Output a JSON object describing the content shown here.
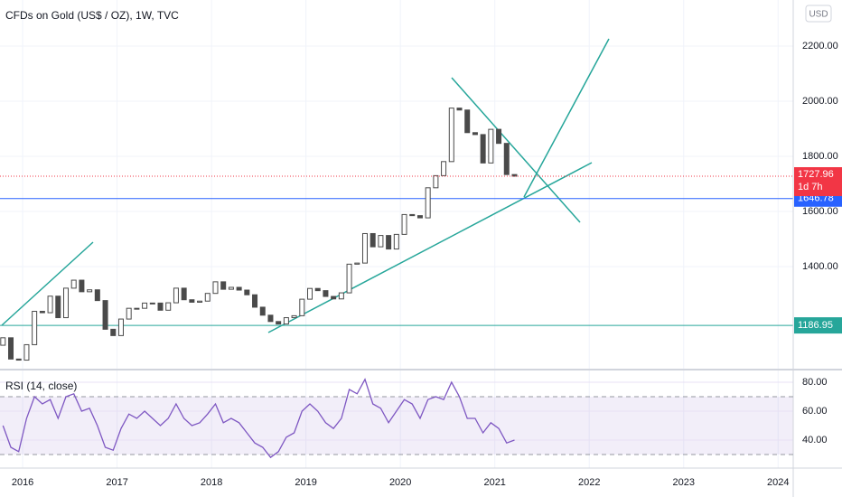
{
  "chart_data": [
    {
      "type": "candlestick",
      "title": "CFDs on Gold (US$ / OZ), 1W, TVC",
      "currency": "USD",
      "x": [
        "2015-10",
        "2015-11",
        "2015-12",
        "2016-01",
        "2016-02",
        "2016-03",
        "2016-04",
        "2016-05",
        "2016-06",
        "2016-07",
        "2016-08",
        "2016-09",
        "2016-10",
        "2016-11",
        "2016-12",
        "2017-01",
        "2017-02",
        "2017-03",
        "2017-04",
        "2017-05",
        "2017-06",
        "2017-07",
        "2017-08",
        "2017-09",
        "2017-10",
        "2017-11",
        "2017-12",
        "2018-01",
        "2018-02",
        "2018-03",
        "2018-04",
        "2018-05",
        "2018-06",
        "2018-07",
        "2018-08",
        "2018-09",
        "2018-10",
        "2018-11",
        "2018-12",
        "2019-01",
        "2019-02",
        "2019-03",
        "2019-04",
        "2019-05",
        "2019-06",
        "2019-07",
        "2019-08",
        "2019-09",
        "2019-10",
        "2019-11",
        "2019-12",
        "2020-01",
        "2020-02",
        "2020-03",
        "2020-04",
        "2020-05",
        "2020-06",
        "2020-07",
        "2020-08",
        "2020-09",
        "2020-10",
        "2020-11",
        "2020-12",
        "2021-01",
        "2021-02",
        "2021-03"
      ],
      "open": [
        1115,
        1142,
        1065,
        1061,
        1117,
        1238,
        1233,
        1293,
        1215,
        1322,
        1351,
        1309,
        1316,
        1277,
        1173,
        1150,
        1210,
        1249,
        1249,
        1268,
        1268,
        1242,
        1269,
        1322,
        1280,
        1271,
        1275,
        1303,
        1345,
        1318,
        1325,
        1315,
        1298,
        1253,
        1224,
        1201,
        1192,
        1215,
        1222,
        1282,
        1321,
        1313,
        1292,
        1283,
        1305,
        1409,
        1413,
        1520,
        1472,
        1513,
        1464,
        1517,
        1589,
        1585,
        1577,
        1686,
        1730,
        1781,
        1975,
        1968,
        1886,
        1879,
        1776,
        1898,
        1847,
        1734
      ],
      "close": [
        1142,
        1065,
        1061,
        1117,
        1238,
        1233,
        1293,
        1215,
        1322,
        1351,
        1309,
        1316,
        1277,
        1173,
        1150,
        1210,
        1249,
        1249,
        1268,
        1268,
        1242,
        1269,
        1322,
        1280,
        1271,
        1275,
        1303,
        1345,
        1318,
        1325,
        1315,
        1298,
        1253,
        1224,
        1201,
        1192,
        1215,
        1222,
        1282,
        1321,
        1313,
        1292,
        1283,
        1305,
        1409,
        1413,
        1520,
        1472,
        1513,
        1464,
        1517,
        1589,
        1585,
        1577,
        1686,
        1730,
        1781,
        1975,
        1968,
        1886,
        1879,
        1776,
        1898,
        1847,
        1734,
        1728
      ],
      "up_color": "#ffffff",
      "down_color": "#4a4a4a",
      "xlim": [
        2015.76,
        2024.16
      ],
      "xticks": [
        2016,
        2017,
        2018,
        2019,
        2020,
        2021,
        2022,
        2023,
        2024
      ],
      "ylim": [
        1030,
        2367
      ],
      "yticks": [
        {
          "value": 1400,
          "label": "1400.00"
        },
        {
          "value": 1600,
          "label": "1600.00"
        },
        {
          "value": 1800,
          "label": "1800.00"
        },
        {
          "value": 2000,
          "label": "2000.00"
        },
        {
          "value": 2200,
          "label": "2200.00"
        }
      ],
      "last_price": {
        "value": 1727.96,
        "countdown": "1d 7h",
        "color": "#f23645"
      },
      "price_lines": [
        {
          "value": 1646.78,
          "color": "#2962ff"
        },
        {
          "value": 1186.95,
          "color": "#26a69a"
        }
      ],
      "grid": true
    },
    {
      "type": "line",
      "title": "RSI (14, close)",
      "values": [
        50,
        35,
        32,
        55,
        70,
        65,
        68,
        55,
        70,
        72,
        60,
        62,
        50,
        35,
        33,
        48,
        58,
        55,
        60,
        55,
        50,
        55,
        65,
        55,
        50,
        52,
        58,
        65,
        52,
        55,
        52,
        45,
        38,
        35,
        28,
        32,
        42,
        45,
        60,
        65,
        60,
        52,
        48,
        55,
        75,
        72,
        82,
        65,
        62,
        52,
        60,
        68,
        65,
        55,
        68,
        70,
        68,
        80,
        70,
        55,
        55,
        45,
        52,
        48,
        38,
        40
      ],
      "color": "#7e57c2",
      "ylim": [
        20.6,
        88.1
      ],
      "yticks": [
        {
          "value": 40,
          "label": "40.00"
        },
        {
          "value": 60,
          "label": "60.00"
        },
        {
          "value": 80,
          "label": "80.00"
        }
      ],
      "bands": [
        30,
        70
      ]
    }
  ]
}
